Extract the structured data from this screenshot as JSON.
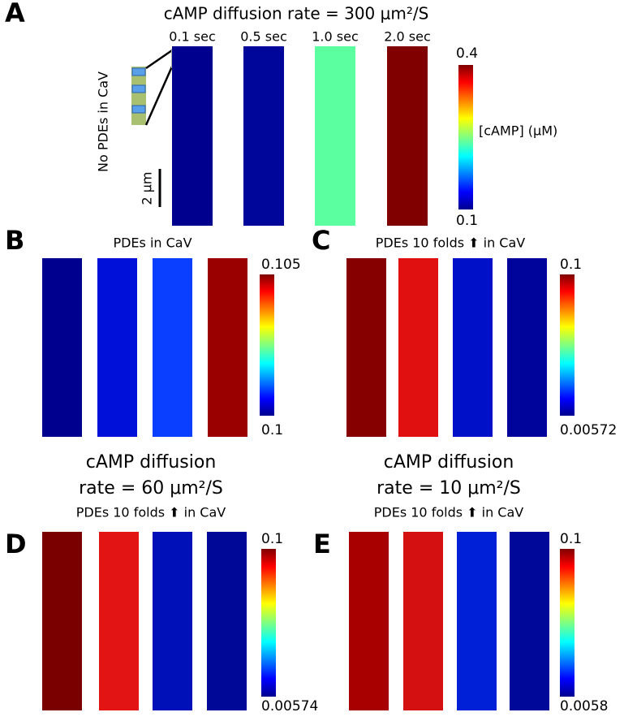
{
  "panels": [
    {
      "label": "A",
      "title_lines": [
        "cAMP diffusion rate = 300 μm²/S"
      ],
      "times": [
        "0.1 sec",
        "0.5 sec",
        "1.0 sec",
        "2.0 sec"
      ],
      "side_label": "No PDEs in CaV",
      "scale_label": "2 μm",
      "colorbar": {
        "max": "0.4",
        "min": "0.1",
        "label": "[cAMP] (μM)"
      },
      "bar_colors": [
        "#00008f",
        "#00069a",
        "#5cff9f",
        "#800000"
      ]
    },
    {
      "label": "B",
      "title_lines": [
        "PDEs in CaV"
      ],
      "colorbar": {
        "max": "0.105",
        "min": "0.1"
      },
      "bar_colors": [
        "#00008f",
        "#0010d9",
        "#0a3fff",
        "#9a0000"
      ]
    },
    {
      "label": "C",
      "title_lines": [
        "PDEs 10 folds ⬆ in CaV"
      ],
      "colorbar": {
        "max": "0.1",
        "min": "0.00572"
      },
      "bar_colors": [
        "#860000",
        "#e01010",
        "#0010c8",
        "#00049a"
      ]
    },
    {
      "label": "D",
      "title_lines": [
        "cAMP diffusion",
        "rate = 60 μm²/S",
        "PDEs 10 folds ⬆ in CaV"
      ],
      "colorbar": {
        "max": "0.1",
        "min": "0.00574"
      },
      "bar_colors": [
        "#7a0000",
        "#e21414",
        "#0010b8",
        "#000898"
      ]
    },
    {
      "label": "E",
      "title_lines": [
        "cAMP diffusion",
        "rate = 10 μm²/S",
        "PDEs 10 folds ⬆ in CaV"
      ],
      "colorbar": {
        "max": "0.1",
        "min": "0.0058"
      },
      "bar_colors": [
        "#a80000",
        "#d41010",
        "#0020d8",
        "#00089a"
      ]
    }
  ]
}
